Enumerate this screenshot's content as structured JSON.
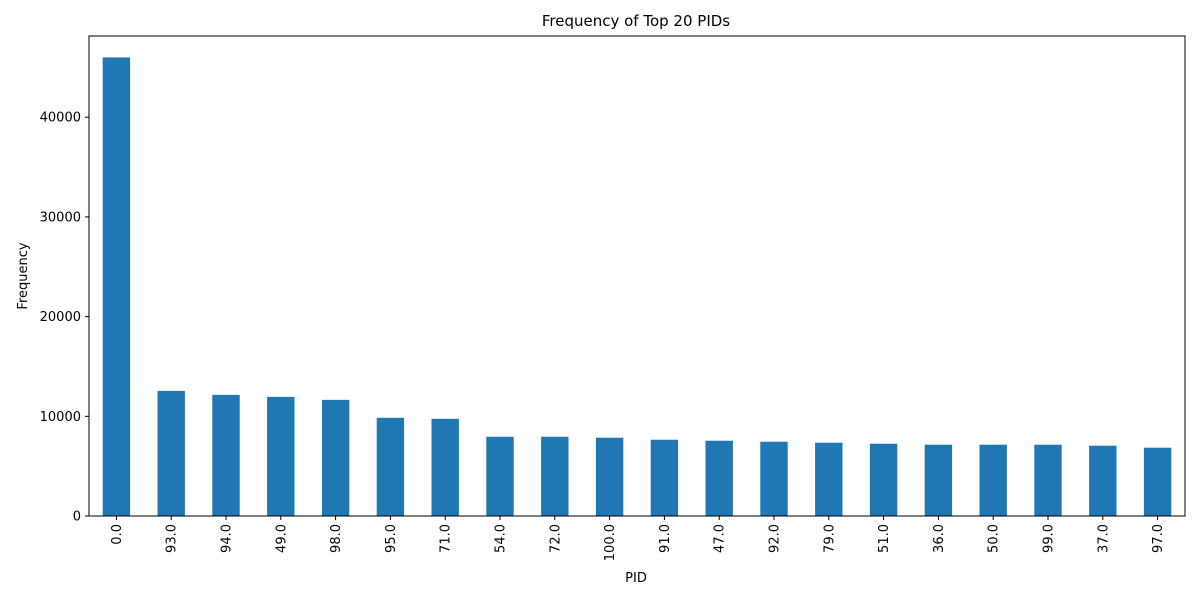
{
  "chart_data": {
    "type": "bar",
    "title": "Frequency of Top 20 PIDs",
    "xlabel": "PID",
    "ylabel": "Frequency",
    "categories": [
      "0.0",
      "93.0",
      "94.0",
      "49.0",
      "98.0",
      "95.0",
      "71.0",
      "54.0",
      "72.0",
      "100.0",
      "91.0",
      "47.0",
      "92.0",
      "79.0",
      "51.0",
      "36.0",
      "50.0",
      "99.0",
      "37.0",
      "97.0"
    ],
    "values": [
      46000,
      12550,
      12150,
      11950,
      11650,
      9850,
      9750,
      7950,
      7950,
      7850,
      7650,
      7550,
      7450,
      7350,
      7250,
      7150,
      7150,
      7150,
      7050,
      6850
    ],
    "ylim": [
      0,
      48150
    ],
    "yticks": [
      0,
      10000,
      20000,
      30000,
      40000
    ],
    "ytick_labels": [
      "0",
      "10000",
      "20000",
      "30000",
      "40000"
    ],
    "bar_color": "#1f77b4",
    "grid": false,
    "legend": "none"
  }
}
